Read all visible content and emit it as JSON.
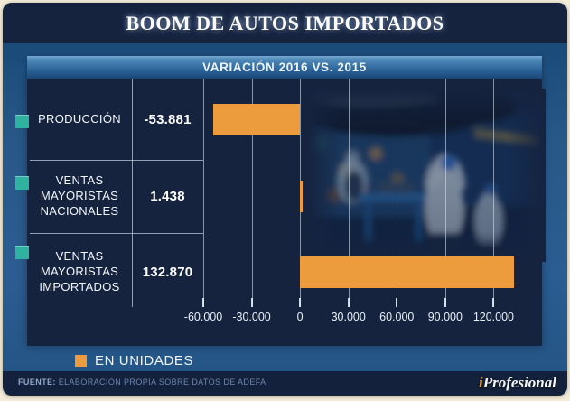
{
  "title": "BOOM DE AUTOS IMPORTADOS",
  "chart_header": "VARIACIÓN 2016 VS. 2015",
  "legend": {
    "label": "EN UNIDADES"
  },
  "footer": {
    "source_label": "FUENTE:",
    "source_text": " ELABORACIÓN PROPIA SOBRE DATOS DE ADEFA",
    "brand_prefix": "i",
    "brand_name": "Profesional"
  },
  "colors": {
    "bar_orange": "#EC9C3C",
    "bullet_teal": "#2FB3A0",
    "panel_navy": "#15233F",
    "body_blue": "#2B5D92",
    "header_gradient_top": "#79ABD4",
    "header_gradient_bottom": "#1D4E82",
    "gridline": "#CBDAE9",
    "brand_orange": "#E8A33D"
  },
  "chart_data": {
    "type": "bar",
    "orientation": "horizontal",
    "title": "VARIACIÓN 2016 VS. 2015",
    "categories": [
      "PRODUCCIÓN",
      "VENTAS MAYORISTAS NACIONALES",
      "VENTAS MAYORISTAS IMPORTADOS"
    ],
    "values": [
      -53881,
      1438,
      132870
    ],
    "value_labels": [
      "-53.881",
      "1.438",
      "132.870"
    ],
    "x_ticks": [
      -60000,
      -30000,
      0,
      30000,
      60000,
      90000,
      120000
    ],
    "x_tick_labels": [
      "-60.000",
      "-30.000",
      "0",
      "30.000",
      "60.000",
      "90.000",
      "120.000"
    ],
    "xlim": [
      -60000,
      150000
    ],
    "grid": true,
    "legend": "EN UNIDADES",
    "bar_color": "#EC9C3C",
    "xlabel": "",
    "ylabel": ""
  }
}
